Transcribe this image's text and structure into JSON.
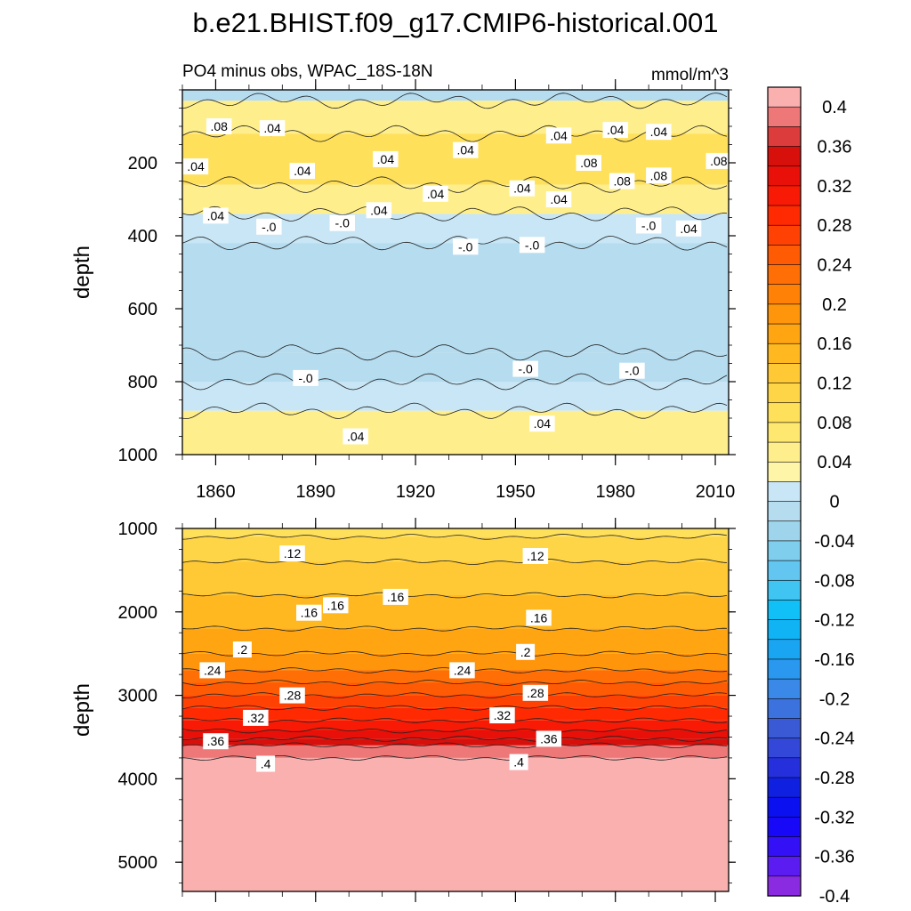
{
  "title": "b.e21.BHIST.f09_g17.CMIP6-historical.001",
  "panel_label_left": "PO4 minus obs, WPAC_18S-18N",
  "panel_label_right": "mmol/m^3",
  "chart_data": [
    {
      "type": "heatmap",
      "name": "upper",
      "xlabel": "",
      "ylabel": "depth",
      "xlim": [
        1850,
        2014
      ],
      "ylim": [
        1000,
        0
      ],
      "xticks": [
        1860,
        1890,
        1920,
        1950,
        1980,
        2010
      ],
      "yticks": [
        200,
        400,
        600,
        800,
        1000
      ],
      "layers": [
        {
          "depth_top": 0,
          "depth_bottom": 30,
          "value": -0.02
        },
        {
          "depth_top": 30,
          "depth_bottom": 120,
          "value": 0.04
        },
        {
          "depth_top": 120,
          "depth_bottom": 260,
          "value": 0.08
        },
        {
          "depth_top": 260,
          "depth_bottom": 340,
          "value": 0.04
        },
        {
          "depth_top": 340,
          "depth_bottom": 420,
          "value": 0.01
        },
        {
          "depth_top": 420,
          "depth_bottom": 720,
          "value": -0.02
        },
        {
          "depth_top": 720,
          "depth_bottom": 800,
          "value": -0.01
        },
        {
          "depth_top": 800,
          "depth_bottom": 880,
          "value": 0.01
        },
        {
          "depth_top": 880,
          "depth_bottom": 1000,
          "value": 0.04
        }
      ],
      "contour_labels": [
        {
          "text": ".08",
          "x": 1861,
          "y": 100
        },
        {
          "text": ".04",
          "x": 1877,
          "y": 105
        },
        {
          "text": ".04",
          "x": 1854,
          "y": 210
        },
        {
          "text": ".04",
          "x": 1860,
          "y": 345
        },
        {
          "text": "-.0",
          "x": 1876,
          "y": 375
        },
        {
          "text": ".04",
          "x": 1886,
          "y": 222
        },
        {
          "text": "-.0",
          "x": 1898,
          "y": 365
        },
        {
          "text": ".04",
          "x": 1911,
          "y": 190
        },
        {
          "text": ".04",
          "x": 1909,
          "y": 330
        },
        {
          "text": ".04",
          "x": 1926,
          "y": 285
        },
        {
          "text": ".04",
          "x": 1935,
          "y": 165
        },
        {
          "text": "-.0",
          "x": 1935,
          "y": 430
        },
        {
          "text": ".04",
          "x": 1952,
          "y": 270
        },
        {
          "text": "-.0",
          "x": 1955,
          "y": 425
        },
        {
          "text": ".04",
          "x": 1963,
          "y": 125
        },
        {
          "text": ".04",
          "x": 1963,
          "y": 300
        },
        {
          "text": ".08",
          "x": 1972,
          "y": 200
        },
        {
          "text": ".04",
          "x": 1980,
          "y": 110
        },
        {
          "text": ".08",
          "x": 1982,
          "y": 250
        },
        {
          "text": ".04",
          "x": 1993,
          "y": 115
        },
        {
          "text": ".08",
          "x": 1993,
          "y": 235
        },
        {
          "text": "-.0",
          "x": 1990,
          "y": 372
        },
        {
          "text": ".04",
          "x": 2002,
          "y": 380
        },
        {
          "text": ".08",
          "x": 2011,
          "y": 195
        },
        {
          "text": "-.0",
          "x": 1887,
          "y": 790
        },
        {
          "text": "-.0",
          "x": 1953,
          "y": 765
        },
        {
          "text": "-.0",
          "x": 1985,
          "y": 770
        },
        {
          "text": ".04",
          "x": 1902,
          "y": 950
        },
        {
          "text": ".04",
          "x": 1958,
          "y": 915
        }
      ]
    },
    {
      "type": "heatmap",
      "name": "lower",
      "xlabel": "",
      "ylabel": "depth",
      "xlim": [
        1850,
        2014
      ],
      "ylim": [
        5350,
        1000
      ],
      "xticks": [
        1860,
        1890,
        1920,
        1950,
        1980,
        2010
      ],
      "yticks": [
        1000,
        2000,
        3000,
        4000,
        5000
      ],
      "layers": [
        {
          "depth_top": 1000,
          "depth_bottom": 1100,
          "value": 0.09
        },
        {
          "depth_top": 1100,
          "depth_bottom": 1400,
          "value": 0.11
        },
        {
          "depth_top": 1400,
          "depth_bottom": 1800,
          "value": 0.13
        },
        {
          "depth_top": 1800,
          "depth_bottom": 2200,
          "value": 0.15
        },
        {
          "depth_top": 2200,
          "depth_bottom": 2500,
          "value": 0.17
        },
        {
          "depth_top": 2500,
          "depth_bottom": 2700,
          "value": 0.19
        },
        {
          "depth_top": 2700,
          "depth_bottom": 2850,
          "value": 0.23
        },
        {
          "depth_top": 2850,
          "depth_bottom": 3000,
          "value": 0.25
        },
        {
          "depth_top": 3000,
          "depth_bottom": 3150,
          "value": 0.27
        },
        {
          "depth_top": 3150,
          "depth_bottom": 3300,
          "value": 0.29
        },
        {
          "depth_top": 3300,
          "depth_bottom": 3420,
          "value": 0.31
        },
        {
          "depth_top": 3420,
          "depth_bottom": 3520,
          "value": 0.33
        },
        {
          "depth_top": 3520,
          "depth_bottom": 3600,
          "value": 0.35
        },
        {
          "depth_top": 3600,
          "depth_bottom": 3750,
          "value": 0.38
        },
        {
          "depth_top": 3750,
          "depth_bottom": 5350,
          "value": 0.42
        }
      ],
      "contour_labels": [
        {
          "text": ".12",
          "x": 1883,
          "y": 1300
        },
        {
          "text": ".12",
          "x": 1956,
          "y": 1330
        },
        {
          "text": ".16",
          "x": 1896,
          "y": 1920
        },
        {
          "text": ".16",
          "x": 1914,
          "y": 1820
        },
        {
          "text": ".16",
          "x": 1888,
          "y": 2010
        },
        {
          "text": ".16",
          "x": 1957,
          "y": 2070
        },
        {
          "text": ".2",
          "x": 1868,
          "y": 2450
        },
        {
          "text": ".2",
          "x": 1953,
          "y": 2480
        },
        {
          "text": ".24",
          "x": 1859,
          "y": 2700
        },
        {
          "text": ".24",
          "x": 1934,
          "y": 2700
        },
        {
          "text": ".28",
          "x": 1883,
          "y": 3000
        },
        {
          "text": ".28",
          "x": 1956,
          "y": 2970
        },
        {
          "text": ".32",
          "x": 1872,
          "y": 3270
        },
        {
          "text": ".32",
          "x": 1946,
          "y": 3240
        },
        {
          "text": ".36",
          "x": 1860,
          "y": 3550
        },
        {
          "text": ".36",
          "x": 1960,
          "y": 3520
        },
        {
          "text": ".4",
          "x": 1875,
          "y": 3820
        },
        {
          "text": ".4",
          "x": 1951,
          "y": 3800
        }
      ]
    }
  ],
  "colorbar": {
    "levels": [
      -0.4,
      -0.38,
      -0.36,
      -0.34,
      -0.32,
      -0.3,
      -0.28,
      -0.26,
      -0.24,
      -0.22,
      -0.2,
      -0.18,
      -0.16,
      -0.14,
      -0.12,
      -0.1,
      -0.08,
      -0.06,
      -0.04,
      -0.02,
      0,
      0.02,
      0.04,
      0.06,
      0.08,
      0.1,
      0.12,
      0.14,
      0.16,
      0.18,
      0.2,
      0.22,
      0.24,
      0.26,
      0.28,
      0.3,
      0.32,
      0.34,
      0.36,
      0.38,
      0.4
    ],
    "colors": [
      "#8a2be2",
      "#5a1cf0",
      "#3310f5",
      "#1808f8",
      "#0a10f0",
      "#1020e0",
      "#2530dc",
      "#3348d8",
      "#3a5ad5",
      "#3c72dd",
      "#3a88e8",
      "#2a98ee",
      "#1aa5f2",
      "#10b4f4",
      "#10c0f6",
      "#40c4f2",
      "#62c6f0",
      "#80ceee",
      "#9ed5ec",
      "#b5dcef",
      "#c8e6f5",
      "#fff5a8",
      "#ffef8c",
      "#ffe870",
      "#ffe05a",
      "#ffd548",
      "#ffc835",
      "#ffb820",
      "#ffa512",
      "#ff950a",
      "#ff8206",
      "#ff6f06",
      "#ff5a04",
      "#ff4204",
      "#ff2a02",
      "#f81a04",
      "#e81008",
      "#d8100c",
      "#dd3c3c",
      "#ee7878",
      "#fbb0b0"
    ],
    "tick_labels": [
      "0.4",
      "0.36",
      "0.32",
      "0.28",
      "0.24",
      "0.2",
      "0.16",
      "0.12",
      "0.08",
      "0.04",
      "0",
      "-0.04",
      "-0.08",
      "-0.12",
      "-0.16",
      "-0.2",
      "-0.24",
      "-0.28",
      "-0.32",
      "-0.36",
      "-0.4"
    ]
  }
}
